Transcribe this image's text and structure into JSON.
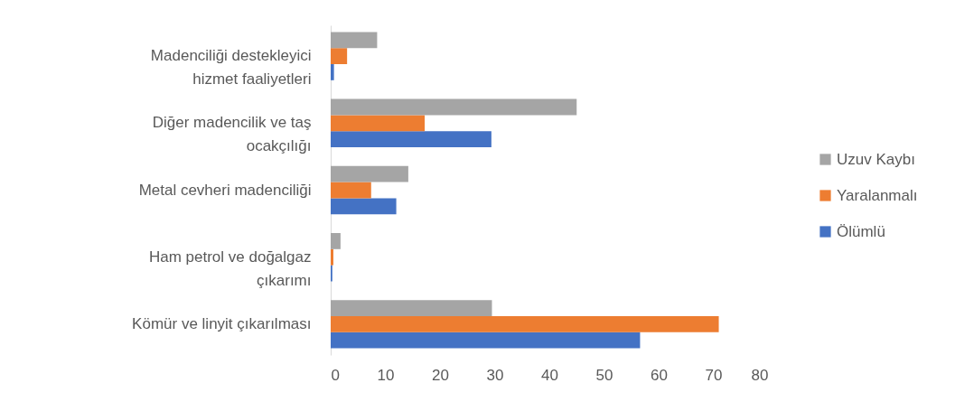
{
  "chart_data": {
    "type": "bar",
    "orientation": "horizontal",
    "categories": [
      "Madenciliği destekleyici hizmet faaliyetleri",
      "Diğer madencilik ve taş ocakçılığı",
      "Metal cevheri madenciliği ",
      "Ham petrol ve doğalgaz çıkarımı",
      "Kömür ve linyit çıkarılması"
    ],
    "series": [
      {
        "name": "Ölümlü",
        "color": "#4472c4",
        "values": [
          0.6,
          29.4,
          12,
          0.3,
          56.6
        ]
      },
      {
        "name": "Yaralanmalı",
        "color": "#ed7d31",
        "values": [
          3,
          17.2,
          7.4,
          0.5,
          71
        ]
      },
      {
        "name": "Uzuv Kaybı",
        "color": "#a5a5a5",
        "values": [
          8.5,
          45,
          14.2,
          1.8,
          29.5
        ]
      }
    ],
    "xlim": [
      0,
      80
    ],
    "xticks": [
      0,
      10,
      20,
      30,
      40,
      50,
      60,
      70,
      80
    ],
    "grid": false,
    "legend": "right"
  }
}
